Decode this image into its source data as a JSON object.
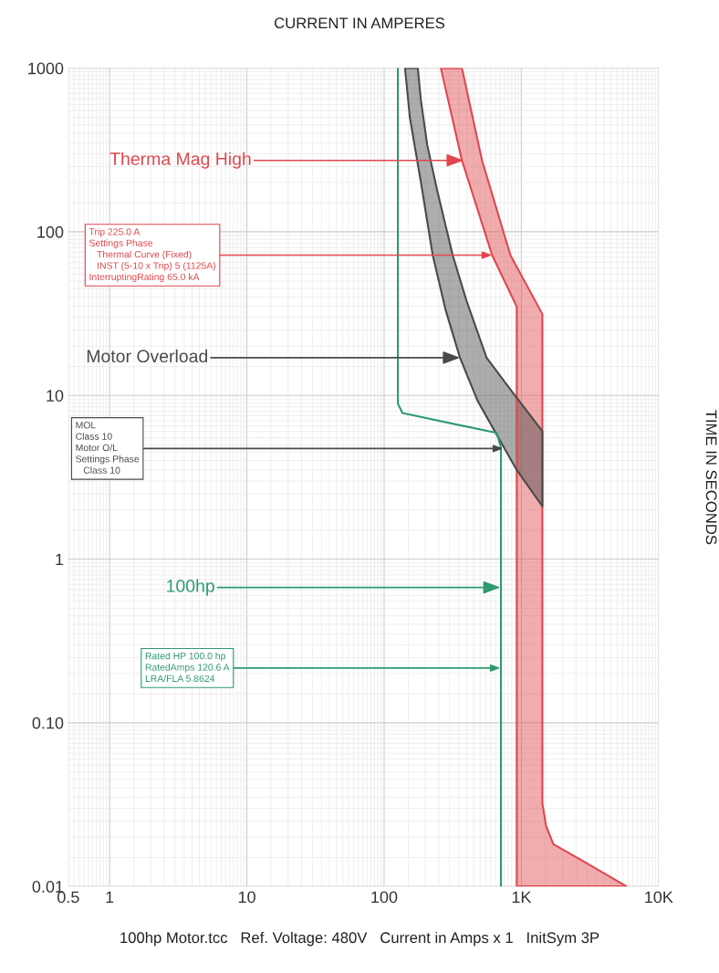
{
  "chart_data": {
    "type": "line",
    "title": "CURRENT IN AMPERES",
    "ylabel": "TIME IN SECONDS",
    "log": "xy",
    "grid": true,
    "xlim": [
      0.5,
      10000
    ],
    "ylim": [
      0.01,
      1000
    ],
    "xticks": [
      0.5,
      1,
      10,
      100,
      {
        "value": 1000,
        "label": "1K"
      },
      {
        "value": 10000,
        "label": "10K"
      }
    ],
    "yticks": [
      0.01,
      {
        "value": 0.1,
        "label": "0.10"
      },
      1,
      10,
      100,
      1000
    ],
    "series": [
      {
        "type": "area",
        "color": "#e0474c",
        "x": [
          259,
          369,
          612,
          926,
          926,
          5843,
          2929,
          1711,
          1514,
          1423,
          1423,
          832,
          517,
          369
        ],
        "values": [
          1000,
          273,
          72,
          34.8,
          0.01,
          0.01,
          0.014,
          0.0181,
          0.0234,
          0.0322,
          31.4,
          72,
          273,
          1000
        ]
      },
      {
        "type": "area",
        "color": "#4a4a4a",
        "x": [
          142,
          154,
          185,
          226,
          280,
          357,
          479,
          661,
          926,
          1423,
          1423,
          858,
          558,
          398,
          316,
          244,
          206,
          185,
          176
        ],
        "values": [
          1000,
          499,
          203,
          72,
          33.5,
          17,
          9.3,
          5.75,
          3.5,
          2.1,
          6.05,
          10.5,
          17,
          38,
          72,
          178,
          340,
          646,
          1000
        ]
      },
      {
        "color": "#2e9a6e",
        "x": [
          126,
          126,
          136,
          661,
          710,
          710
        ],
        "values": [
          1000,
          8.9,
          7.8,
          5.9,
          4.8,
          0.01
        ]
      }
    ],
    "annotations": [
      {
        "text": "Therma Mag High",
        "x": 380,
        "y": 273
      },
      {
        "text": "Trip 225.0 A\nSettings Phase\n   Thermal Curve (Fixed)\n   INST (5-10 x Trip) 5 (1125A)\nInterruptingRating 65.0 kA",
        "x": 612,
        "y": 72
      },
      {
        "text": "Motor Overload",
        "x": 357,
        "y": 17
      },
      {
        "text": "MOL\nClass 10\nMotor O/L\nSettings Phase\n   Class 10",
        "x": 736,
        "y": 4.74
      },
      {
        "text": "100hp",
        "x": 703,
        "y": 0.671
      },
      {
        "text": "Rated HP 100.0 hp\nRatedAmps 120.6 A\nLRA/FLA 5.8624",
        "x": 703,
        "y": 0.216
      },
      "100hp Motor.tcc   Ref. Voltage: 480V   Current in Amps x 1   InitSym 3P"
    ]
  }
}
